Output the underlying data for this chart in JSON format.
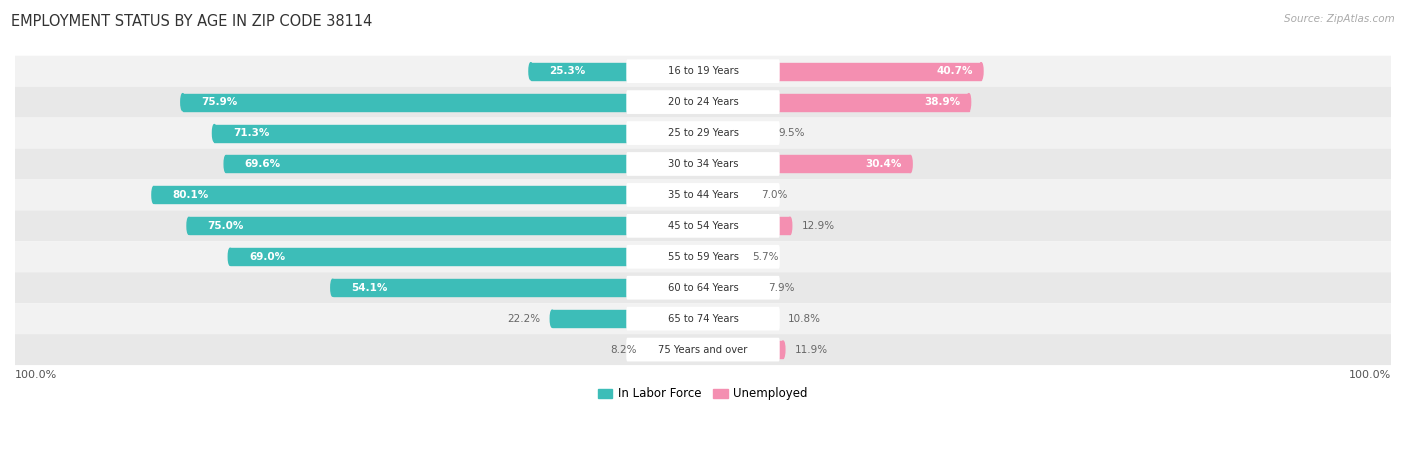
{
  "title": "EMPLOYMENT STATUS BY AGE IN ZIP CODE 38114",
  "source": "Source: ZipAtlas.com",
  "categories": [
    "16 to 19 Years",
    "20 to 24 Years",
    "25 to 29 Years",
    "30 to 34 Years",
    "35 to 44 Years",
    "45 to 54 Years",
    "55 to 59 Years",
    "60 to 64 Years",
    "65 to 74 Years",
    "75 Years and over"
  ],
  "labor_force": [
    25.3,
    75.9,
    71.3,
    69.6,
    80.1,
    75.0,
    69.0,
    54.1,
    22.2,
    8.2
  ],
  "unemployed": [
    40.7,
    38.9,
    9.5,
    30.4,
    7.0,
    12.9,
    5.7,
    7.9,
    10.8,
    11.9
  ],
  "labor_color": "#3dbdb8",
  "unemployed_color": "#f48fb1",
  "row_bg_light": "#f2f2f2",
  "row_bg_dark": "#e8e8e8",
  "label_color_inside": "#ffffff",
  "label_color_outside": "#666666",
  "axis_label_left": "100.0%",
  "axis_label_right": "100.0%",
  "legend_labor": "In Labor Force",
  "legend_unemployed": "Unemployed",
  "bar_height": 0.55,
  "center_label_bg": "#ffffff"
}
